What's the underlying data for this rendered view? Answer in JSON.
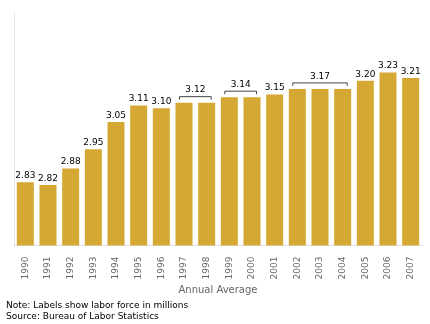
{
  "chart_data": {
    "type": "bar",
    "categories": [
      "1990",
      "1991",
      "1992",
      "1993",
      "1994",
      "1995",
      "1996",
      "1997",
      "1998",
      "1999",
      "2000",
      "2001",
      "2002",
      "2003",
      "2004",
      "2005",
      "2006",
      "2007"
    ],
    "values": [
      2.83,
      2.82,
      2.88,
      2.95,
      3.05,
      3.11,
      3.1,
      3.12,
      3.12,
      3.14,
      3.14,
      3.15,
      3.17,
      3.17,
      3.17,
      3.2,
      3.23,
      3.21
    ],
    "value_labels": [
      "2.83",
      "2.82",
      "2.88",
      "2.95",
      "3.05",
      "3.11",
      "3.10",
      null,
      null,
      null,
      null,
      "3.15",
      null,
      null,
      null,
      "3.20",
      "3.23",
      "3.21"
    ],
    "data_labels": true,
    "color": "#D4A833",
    "xlabel": "Annual Average",
    "ylim": [
      2.6,
      3.45
    ],
    "tick_labels": "x",
    "grid": false,
    "annotations": [
      {
        "text": "3.12",
        "categories": [
          "1997",
          "1998"
        ],
        "color": "#444444"
      },
      {
        "text": "3.14",
        "categories": [
          "1999",
          "2000"
        ],
        "color": "#444444"
      },
      {
        "text": "3.17",
        "categories": [
          "2002",
          "2003",
          "2004"
        ],
        "color": "#444444"
      }
    ],
    "notes": [
      "Note: Labels show labor force in millions",
      "Source: Bureau of Labor Statistics"
    ]
  }
}
